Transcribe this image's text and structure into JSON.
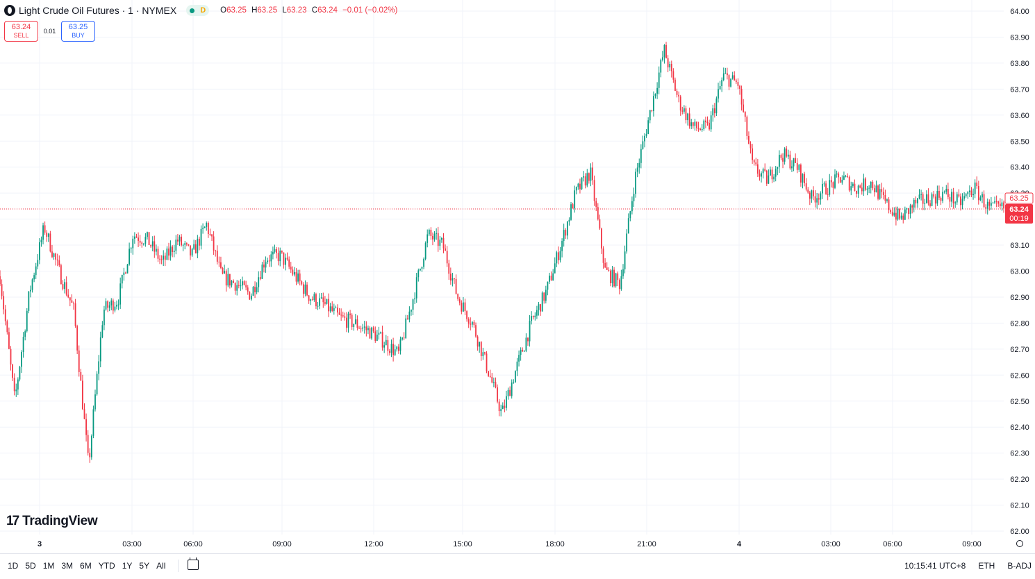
{
  "legend": {
    "title": "Light Crude Oil Futures · 1 · NYMEX",
    "mode": "D",
    "o_label": "O",
    "o": "63.25",
    "h_label": "H",
    "h": "63.25",
    "l_label": "L",
    "l": "63.23",
    "c_label": "C",
    "c": "63.24",
    "change": "−0.01 (−0.02%)",
    "symbol_icon": "oil-drop-icon"
  },
  "trade": {
    "sell_price": "63.24",
    "sell_label": "SELL",
    "spread": "0.01",
    "buy_price": "63.25",
    "buy_label": "BUY"
  },
  "brand": {
    "name": "TradingView",
    "icon": "tradingview-logo-icon"
  },
  "price_tags": {
    "last": "63.25",
    "current": "63.24",
    "countdown": "00:19"
  },
  "bottom": {
    "ranges": [
      "1D",
      "5D",
      "1M",
      "3M",
      "6M",
      "YTD",
      "1Y",
      "5Y",
      "All"
    ],
    "time": "10:15:41 UTC+8",
    "session": "ETH",
    "adjust": "B-ADJ"
  },
  "colors": {
    "up": "#089981",
    "down": "#f23645",
    "grid": "#f0f3fa",
    "text": "#131722"
  },
  "chart_data": {
    "type": "line",
    "series_style": "candlestick",
    "y_ticks": [
      "64.00",
      "63.90",
      "63.80",
      "63.70",
      "63.60",
      "63.50",
      "63.40",
      "63.30",
      "63.20",
      "63.10",
      "63.00",
      "62.90",
      "62.80",
      "62.70",
      "62.60",
      "62.50",
      "62.40",
      "62.30",
      "62.20",
      "62.10",
      "62.00"
    ],
    "ylim": [
      62.0,
      64.0
    ],
    "x_ticks": [
      "3",
      "03:00",
      "06:00",
      "09:00",
      "12:00",
      "15:00",
      "18:00",
      "21:00",
      "4",
      "03:00",
      "06:00",
      "09:00"
    ],
    "x": [
      "3 00:00",
      "3 00:30",
      "3 01:00",
      "3 01:30",
      "3 02:00",
      "3 02:30",
      "3 03:00",
      "3 03:30",
      "3 04:00",
      "3 04:30",
      "3 05:00",
      "3 05:30",
      "3 06:00",
      "3 06:30",
      "3 07:00",
      "3 07:30",
      "3 08:00",
      "3 08:30",
      "3 09:00",
      "3 09:30",
      "3 10:00",
      "3 10:30",
      "3 11:00",
      "3 11:30",
      "3 12:00",
      "3 12:30",
      "3 13:00",
      "3 13:30",
      "3 14:00",
      "3 14:30",
      "3 15:00",
      "3 15:30",
      "3 16:00",
      "3 16:30",
      "3 17:00",
      "3 17:30",
      "3 18:00",
      "3 18:30",
      "3 19:00",
      "3 19:30",
      "3 20:00",
      "3 20:30",
      "3 21:00",
      "3 21:30",
      "3 22:00",
      "3 22:30",
      "3 23:00",
      "3 23:30",
      "4 00:00",
      "4 00:30",
      "4 01:00",
      "4 01:30",
      "4 02:00",
      "4 02:30",
      "4 03:00",
      "4 03:30",
      "4 04:00",
      "4 04:30",
      "4 05:00",
      "4 05:30",
      "4 06:00",
      "4 06:30",
      "4 07:00",
      "4 07:30",
      "4 08:00",
      "4 08:30",
      "4 09:00",
      "4 09:30",
      "4 10:00"
    ],
    "values": [
      62.98,
      62.5,
      62.92,
      63.17,
      63.0,
      62.85,
      62.25,
      62.85,
      62.89,
      63.14,
      63.12,
      63.03,
      63.12,
      63.06,
      63.18,
      62.98,
      62.95,
      62.91,
      63.05,
      63.06,
      62.98,
      62.9,
      62.87,
      62.82,
      62.8,
      62.77,
      62.73,
      62.68,
      62.9,
      63.14,
      63.1,
      62.9,
      62.8,
      62.63,
      62.45,
      62.63,
      62.8,
      62.92,
      63.1,
      63.3,
      63.38,
      63.0,
      62.95,
      63.35,
      63.6,
      63.85,
      63.65,
      63.55,
      63.55,
      63.75,
      63.72,
      63.4,
      63.35,
      63.45,
      63.4,
      63.28,
      63.32,
      63.36,
      63.32,
      63.34,
      63.26,
      63.2,
      63.26,
      63.28,
      63.3,
      63.26,
      63.32,
      63.24,
      63.24
    ]
  }
}
